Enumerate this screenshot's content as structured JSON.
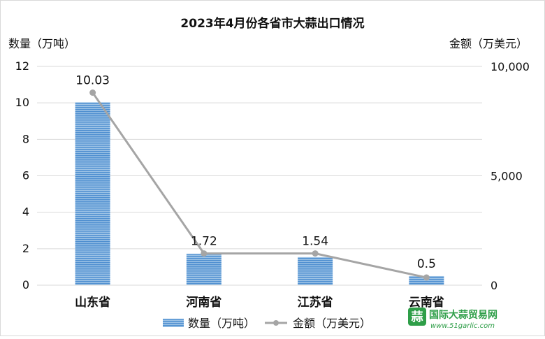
{
  "chart_data": {
    "type": "bar",
    "title": "2023年4月份各省市大蒜出口情况",
    "categories": [
      "山东省",
      "河南省",
      "江苏省",
      "云南省"
    ],
    "left_axis": {
      "label": "数量（万吨）",
      "ylim": [
        0,
        12
      ],
      "ticks": [
        "0",
        "2",
        "4",
        "6",
        "8",
        "10",
        "12"
      ]
    },
    "right_axis": {
      "label": "金额（万美元）",
      "ylim": [
        0,
        10000
      ],
      "ticks": [
        "0",
        "5,000",
        "10,000"
      ]
    },
    "series": [
      {
        "name": "数量（万吨）",
        "type": "bar",
        "axis": "left",
        "values": [
          10.03,
          1.72,
          1.54,
          0.5
        ],
        "data_labels": [
          "10.03",
          "1.72",
          "1.54",
          "0.5"
        ],
        "color": "#5b9bd5"
      },
      {
        "name": "金额（万美元）",
        "type": "line",
        "axis": "right",
        "values": [
          8800,
          1450,
          1450,
          350
        ],
        "color": "#a5a5a5"
      }
    ],
    "grid": true,
    "legend_position": "bottom"
  },
  "watermark": {
    "logo_text": "蒜",
    "name": "国际大蒜贸易网",
    "url": "www.51garlic.com"
  }
}
